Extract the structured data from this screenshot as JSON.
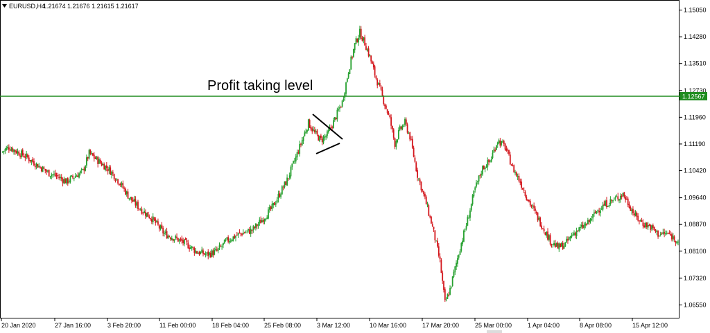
{
  "header": {
    "menu_icon": "triangle-down-icon",
    "symbol": "EURUSD,H4",
    "ohlc": "1.21674 1.21676 1.21615 1.21617"
  },
  "annotation": "Profit taking level",
  "hline": {
    "price": 1.12567,
    "label": "1.12567",
    "color": "#1f8c1f"
  },
  "price_axis": [
    "1.15050",
    "1.14280",
    "1.13510",
    "1.12730",
    "1.11960",
    "1.11190",
    "1.10420",
    "1.09640",
    "1.08870",
    "1.08100",
    "1.07320",
    "1.06550"
  ],
  "time_axis": [
    "20 Jan 2020",
    "27 Jan 16:00",
    "3 Feb 20:00",
    "11 Feb 00:00",
    "18 Feb 04:00",
    "25 Feb 08:00",
    "3 Mar 12:00",
    "10 Mar 16:00",
    "17 Mar 20:00",
    "25 Mar 00:00",
    "1 Apr 04:00",
    "8 Apr 08:00",
    "15 Apr 12:00"
  ],
  "colors": {
    "bull": "#26a02f",
    "bear": "#d3161c",
    "line": "#1f8c1f",
    "axis": "#000000"
  },
  "chart_data": {
    "type": "candlestick",
    "price_range": [
      1.062,
      1.153
    ],
    "path_close": [
      [
        0,
        1.1095
      ],
      [
        6,
        1.111
      ],
      [
        12,
        1.1098
      ],
      [
        20,
        1.1082
      ],
      [
        28,
        1.106
      ],
      [
        38,
        1.1035
      ],
      [
        45,
        1.1025
      ],
      [
        52,
        1.101
      ],
      [
        58,
        1.1025
      ],
      [
        65,
        1.104
      ],
      [
        70,
        1.1092
      ],
      [
        78,
        1.1068
      ],
      [
        86,
        1.1045
      ],
      [
        94,
        1.101
      ],
      [
        102,
        1.0965
      ],
      [
        110,
        1.0935
      ],
      [
        120,
        1.0905
      ],
      [
        130,
        1.086
      ],
      [
        140,
        1.0845
      ],
      [
        148,
        1.083
      ],
      [
        156,
        1.0808
      ],
      [
        164,
        1.08
      ],
      [
        172,
        1.081
      ],
      [
        180,
        1.084
      ],
      [
        190,
        1.086
      ],
      [
        200,
        1.087
      ],
      [
        208,
        1.09
      ],
      [
        216,
        1.0935
      ],
      [
        222,
        1.0975
      ],
      [
        228,
        1.1015
      ],
      [
        234,
        1.107
      ],
      [
        240,
        1.113
      ],
      [
        245,
        1.118
      ],
      [
        250,
        1.115
      ],
      [
        255,
        1.113
      ],
      [
        260,
        1.1145
      ],
      [
        266,
        1.119
      ],
      [
        272,
        1.124
      ],
      [
        277,
        1.133
      ],
      [
        282,
        1.1405
      ],
      [
        286,
        1.144
      ],
      [
        290,
        1.141
      ],
      [
        294,
        1.137
      ],
      [
        298,
        1.132
      ],
      [
        304,
        1.1255
      ],
      [
        310,
        1.119
      ],
      [
        314,
        1.112
      ],
      [
        318,
        1.116
      ],
      [
        322,
        1.118
      ],
      [
        326,
        1.114
      ],
      [
        332,
        1.103
      ],
      [
        338,
        1.096
      ],
      [
        344,
        1.088
      ],
      [
        350,
        1.078
      ],
      [
        354,
        1.066
      ],
      [
        358,
        1.07
      ],
      [
        362,
        1.076
      ],
      [
        366,
        1.082
      ],
      [
        372,
        1.09
      ],
      [
        378,
        1.099
      ],
      [
        384,
        1.105
      ],
      [
        390,
        1.107
      ],
      [
        396,
        1.113
      ],
      [
        402,
        1.111
      ],
      [
        408,
        1.105
      ],
      [
        414,
        1.101
      ],
      [
        420,
        1.096
      ],
      [
        426,
        1.092
      ],
      [
        432,
        1.088
      ],
      [
        438,
        1.084
      ],
      [
        444,
        1.082
      ],
      [
        450,
        1.083
      ],
      [
        456,
        1.086
      ],
      [
        462,
        1.0875
      ],
      [
        468,
        1.089
      ],
      [
        476,
        1.093
      ],
      [
        484,
        1.095
      ],
      [
        490,
        1.096
      ],
      [
        496,
        1.0975
      ],
      [
        500,
        1.095
      ],
      [
        506,
        1.091
      ],
      [
        512,
        1.089
      ],
      [
        518,
        1.088
      ],
      [
        524,
        1.086
      ],
      [
        532,
        1.086
      ],
      [
        540,
        1.084
      ]
    ]
  }
}
